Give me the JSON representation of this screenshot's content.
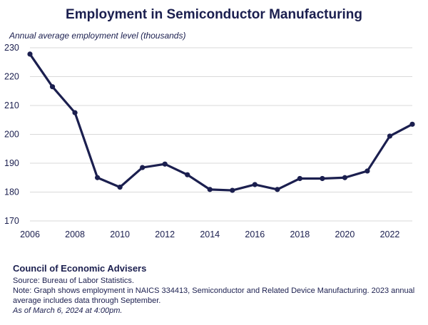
{
  "chart_data": {
    "type": "line",
    "title": "Employment in Semiconductor Manufacturing",
    "ylabel": "Annual average employment level (thousands)",
    "xlabel": "",
    "x": [
      2006,
      2007,
      2008,
      2009,
      2010,
      2011,
      2012,
      2013,
      2014,
      2015,
      2016,
      2017,
      2018,
      2019,
      2020,
      2021,
      2022,
      2023
    ],
    "values": [
      227.8,
      216.5,
      207.5,
      185.0,
      181.7,
      188.5,
      189.7,
      186.0,
      180.9,
      180.6,
      182.6,
      180.9,
      184.7,
      184.7,
      185.0,
      187.3,
      199.4,
      203.5
    ],
    "xlim": [
      2006,
      2023
    ],
    "ylim": [
      170,
      230
    ],
    "x_ticks": [
      "2006",
      "2008",
      "2010",
      "2012",
      "2014",
      "2016",
      "2018",
      "2020",
      "2022"
    ],
    "y_ticks": [
      "170",
      "180",
      "190",
      "200",
      "210",
      "220",
      "230"
    ],
    "grid": "horizontal",
    "line_color": "#1b1f4f",
    "grid_color": "#d9d9d9"
  },
  "footer": {
    "organization": "Council of Economic Advisers",
    "source": "Source: Bureau of Labor Statistics.",
    "note": "Note: Graph shows employment in NAICS 334413, Semiconductor and Related Device Manufacturing. 2023 annual average includes data through September.",
    "as_of": "As of March 6, 2024 at 4:00pm."
  }
}
